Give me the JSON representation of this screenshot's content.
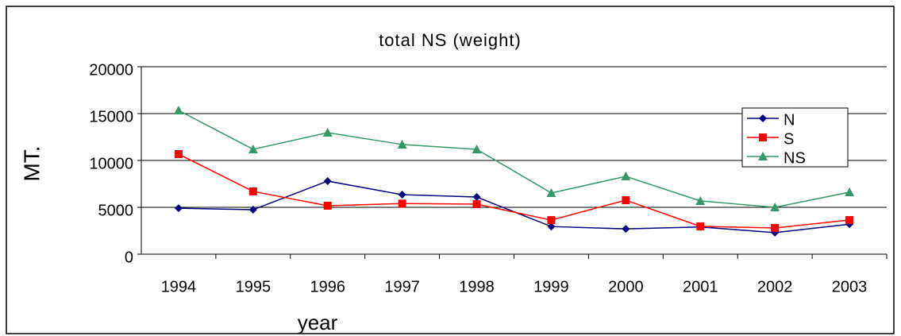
{
  "chart_data": {
    "type": "line",
    "title": "total NS (weight)",
    "x_label": "year",
    "y_label": "MT.",
    "categories": [
      "1994",
      "1995",
      "1996",
      "1997",
      "1998",
      "1999",
      "2000",
      "2001",
      "2002",
      "2003"
    ],
    "series": [
      {
        "name": "N",
        "color": "#000080",
        "marker": "diamond",
        "values": [
          4900,
          4750,
          7800,
          6350,
          6100,
          2950,
          2700,
          2900,
          2300,
          3200
        ]
      },
      {
        "name": "S",
        "color": "#ff0000",
        "marker": "square",
        "values": [
          10680,
          6700,
          5170,
          5400,
          5340,
          3640,
          5760,
          2970,
          2800,
          3640
        ]
      },
      {
        "name": "NS",
        "color": "#339966",
        "marker": "triangle",
        "values": [
          15340,
          11190,
          12970,
          11700,
          11190,
          6530,
          8300,
          5680,
          5000,
          6610
        ]
      }
    ],
    "ylim": [
      0,
      20000
    ],
    "yticks": [
      0,
      5000,
      10000,
      15000,
      20000
    ],
    "grid": true,
    "legend": "right"
  }
}
